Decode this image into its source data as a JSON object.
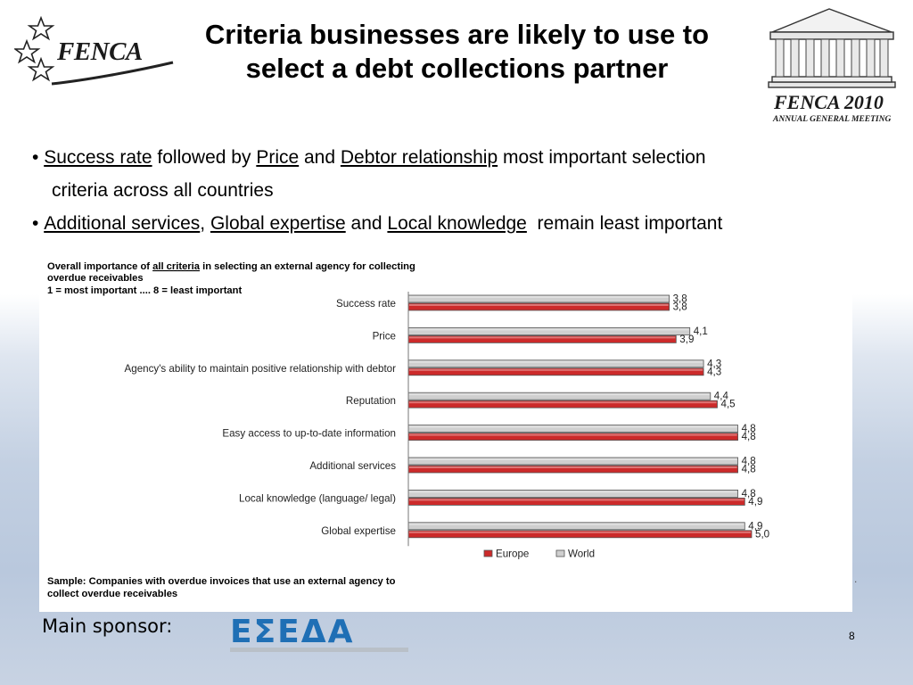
{
  "header": {
    "logo_text": "FENCA",
    "title_line1": "Criteria businesses are likely to use to",
    "title_line2": "select a debt collections partner",
    "agm_title": "FENCA 2010",
    "agm_subtitle": "ANNUAL GENERAL MEETING"
  },
  "bullets": {
    "b1_u1": "Success rate",
    "b1_t1": " followed by ",
    "b1_u2": "Price",
    "b1_t2": " and ",
    "b1_u3": "Debtor relationship",
    "b1_t3": " most important selection",
    "b1_cont": "criteria across all countries",
    "b2_u1": "Additional services",
    "b2_t1": ", ",
    "b2_u2": "Global expertise",
    "b2_t2": " and ",
    "b2_u3": "Local knowledge",
    "b2_t3": "  remain least important"
  },
  "chart_data": {
    "type": "bar",
    "orientation": "horizontal",
    "title_line1_pre": "Overall importance of ",
    "title_line1_u": "all criteria",
    "title_line1_post": " in selecting an external agency for collecting",
    "title_line2": "overdue receivables",
    "title_line3": "1 = most important .... 8 = least important",
    "categories": [
      "Success rate",
      "Price",
      "Agency's ability to maintain positive relationship with debtor",
      "Reputation",
      "Easy access to up-to-date information",
      "Additional services",
      "Local knowledge (language/ legal)",
      "Global expertise"
    ],
    "series": [
      {
        "name": "World",
        "color": "#cfcfcf",
        "values": [
          3.8,
          4.1,
          4.3,
          4.4,
          4.8,
          4.8,
          4.8,
          4.9
        ],
        "labels": [
          "3,8",
          "4,1",
          "4,3",
          "4,4",
          "4,8",
          "4,8",
          "4,8",
          "4,9"
        ]
      },
      {
        "name": "Europe",
        "color": "#cc2a2a",
        "values": [
          3.8,
          3.9,
          4.3,
          4.5,
          4.8,
          4.8,
          4.9,
          5.0
        ],
        "labels": [
          "3,8",
          "3,9",
          "4,3",
          "4,5",
          "4,8",
          "4,8",
          "4,9",
          "5,0"
        ]
      }
    ],
    "legend_order": [
      "Europe",
      "World"
    ],
    "legend_placement": "bottom",
    "grid": false,
    "sample_line1": "Sample: Companies with overdue invoices that use an external agency to",
    "sample_line2": "collect overdue receivables"
  },
  "footer": {
    "sponsor_label": "Main sponsor:",
    "sponsor_logo_text": "ΕΣΕΔΑ",
    "page_number": "8",
    "stray_dot": "."
  }
}
